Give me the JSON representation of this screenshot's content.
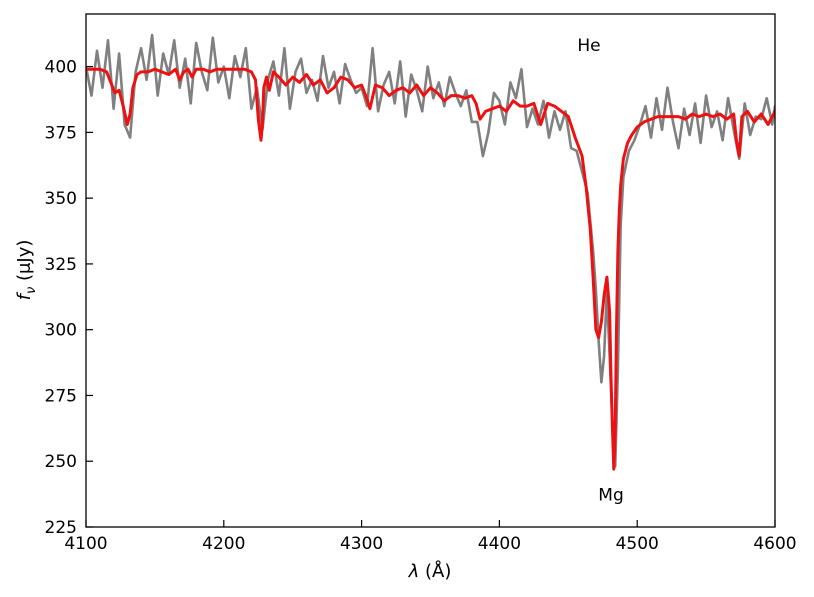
{
  "chart_data": {
    "type": "line",
    "title": "",
    "xlabel": "λ (Å)",
    "ylabel": "f_ν (μJy)",
    "ylabel_parts": {
      "f": "f",
      "sub": "ν",
      "rest": " (μJy)"
    },
    "xlim": [
      4100,
      4600
    ],
    "ylim": [
      225,
      420
    ],
    "xticks": [
      4100,
      4200,
      4300,
      4400,
      4500,
      4600
    ],
    "yticks": [
      225,
      250,
      275,
      300,
      325,
      350,
      375,
      400
    ],
    "tick_direction": "in",
    "grid": false,
    "legend": null,
    "annotations": [
      {
        "text": "He",
        "x": 4465,
        "y": 406
      },
      {
        "text": "Mg",
        "x": 4481,
        "y": 235
      }
    ],
    "series": [
      {
        "role": "observed",
        "color": "#808080",
        "x": [
          4100,
          4104,
          4108,
          4112,
          4116,
          4120,
          4124,
          4128,
          4132,
          4136,
          4140,
          4144,
          4148,
          4152,
          4156,
          4160,
          4164,
          4168,
          4172,
          4176,
          4180,
          4184,
          4188,
          4192,
          4196,
          4200,
          4204,
          4208,
          4212,
          4216,
          4220,
          4224,
          4228,
          4232,
          4236,
          4240,
          4244,
          4248,
          4252,
          4256,
          4260,
          4264,
          4268,
          4272,
          4276,
          4280,
          4284,
          4288,
          4292,
          4296,
          4300,
          4304,
          4308,
          4312,
          4316,
          4320,
          4324,
          4328,
          4332,
          4336,
          4340,
          4344,
          4348,
          4352,
          4356,
          4360,
          4364,
          4368,
          4372,
          4376,
          4380,
          4384,
          4388,
          4392,
          4396,
          4400,
          4404,
          4408,
          4412,
          4416,
          4420,
          4424,
          4428,
          4432,
          4436,
          4440,
          4444,
          4448,
          4452,
          4456,
          4460,
          4464,
          4468,
          4470,
          4472,
          4474,
          4476,
          4478,
          4480,
          4482,
          4484,
          4486,
          4488,
          4490,
          4494,
          4498,
          4502,
          4506,
          4510,
          4514,
          4518,
          4522,
          4526,
          4530,
          4534,
          4538,
          4542,
          4546,
          4550,
          4554,
          4558,
          4562,
          4566,
          4570,
          4574,
          4578,
          4582,
          4586,
          4590,
          4594,
          4598,
          4600
        ],
        "y": [
          400,
          389,
          406,
          392,
          410,
          384,
          405,
          378,
          373,
          398,
          407,
          395,
          412,
          389,
          405,
          397,
          410,
          392,
          403,
          386,
          409,
          398,
          391,
          411,
          394,
          400,
          388,
          404,
          396,
          407,
          384,
          392,
          376,
          395,
          402,
          389,
          407,
          384,
          398,
          403,
          390,
          395,
          387,
          404,
          392,
          398,
          386,
          401,
          395,
          390,
          392,
          385,
          407,
          383,
          393,
          398,
          386,
          402,
          381,
          397,
          391,
          383,
          400,
          388,
          394,
          385,
          396,
          390,
          385,
          391,
          379,
          379,
          366,
          375,
          390,
          387,
          378,
          394,
          388,
          399,
          377,
          384,
          378,
          387,
          373,
          383,
          376,
          383,
          369,
          368,
          360,
          352,
          330,
          315,
          296,
          280,
          290,
          315,
          290,
          265,
          248,
          285,
          340,
          358,
          368,
          372,
          378,
          385,
          373,
          388,
          376,
          392,
          379,
          369,
          384,
          374,
          386,
          371,
          389,
          377,
          383,
          372,
          388,
          376,
          365,
          386,
          374,
          381,
          380,
          388,
          378,
          385
        ]
      },
      {
        "role": "model",
        "color": "#ee1111",
        "x": [
          4100,
          4105,
          4110,
          4115,
          4118,
          4121,
          4124,
          4127,
          4130,
          4132,
          4134,
          4137,
          4140,
          4145,
          4150,
          4155,
          4160,
          4165,
          4168,
          4171,
          4174,
          4177,
          4180,
          4185,
          4190,
          4195,
          4200,
          4205,
          4210,
          4215,
          4220,
          4223,
          4225,
          4227,
          4228,
          4229,
          4231,
          4233,
          4236,
          4240,
          4245,
          4250,
          4255,
          4260,
          4265,
          4270,
          4275,
          4280,
          4285,
          4290,
          4295,
          4300,
          4303,
          4306,
          4310,
          4315,
          4320,
          4325,
          4330,
          4335,
          4340,
          4345,
          4350,
          4355,
          4360,
          4365,
          4370,
          4375,
          4380,
          4383,
          4386,
          4390,
          4395,
          4400,
          4405,
          4410,
          4415,
          4420,
          4425,
          4430,
          4435,
          4440,
          4445,
          4450,
          4455,
          4460,
          4463,
          4466,
          4468,
          4470,
          4472,
          4474,
          4476,
          4478,
          4480,
          4481,
          4482,
          4483,
          4484,
          4485,
          4486,
          4487,
          4488,
          4490,
          4493,
          4496,
          4500,
          4505,
          4510,
          4515,
          4520,
          4525,
          4530,
          4535,
          4540,
          4545,
          4550,
          4555,
          4560,
          4565,
          4570,
          4572,
          4574,
          4576,
          4580,
          4585,
          4590,
          4595,
          4600
        ],
        "y": [
          399,
          399,
          399,
          398,
          394,
          390,
          391,
          385,
          378,
          382,
          392,
          397,
          398,
          398,
          399,
          398,
          397,
          399,
          395,
          398,
          399,
          396,
          399,
          399,
          398,
          399,
          399,
          399,
          399,
          399,
          398,
          395,
          380,
          372,
          378,
          392,
          396,
          391,
          398,
          396,
          393,
          396,
          394,
          397,
          393,
          395,
          390,
          392,
          396,
          395,
          392,
          393,
          389,
          384,
          393,
          392,
          389,
          391,
          392,
          390,
          393,
          389,
          392,
          390,
          387,
          389,
          389,
          388,
          389,
          386,
          380,
          383,
          384,
          385,
          383,
          387,
          385,
          385,
          386,
          378,
          386,
          385,
          383,
          381,
          373,
          366,
          354,
          338,
          320,
          300,
          297,
          303,
          313,
          320,
          307,
          282,
          263,
          247,
          262,
          300,
          330,
          345,
          355,
          365,
          371,
          374,
          377,
          379,
          380,
          381,
          381,
          381,
          381,
          380,
          382,
          381,
          382,
          381,
          382,
          380,
          382,
          372,
          366,
          381,
          383,
          379,
          382,
          378,
          383
        ]
      }
    ]
  }
}
